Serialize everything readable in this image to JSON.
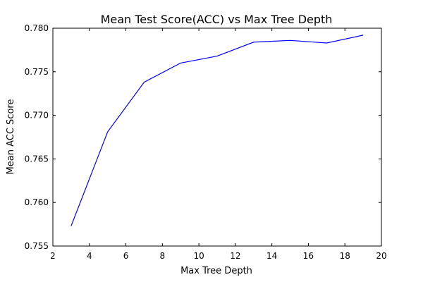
{
  "chart_data": {
    "type": "line",
    "title": "Mean Test Score(ACC) vs Max Tree Depth",
    "xlabel": "Max Tree Depth",
    "ylabel": "Mean ACC Score",
    "xlim": [
      2,
      20
    ],
    "ylim": [
      0.755,
      0.78
    ],
    "xticks": [
      "2",
      "4",
      "6",
      "8",
      "10",
      "12",
      "14",
      "16",
      "18",
      "20"
    ],
    "yticks": [
      "0.755",
      "0.760",
      "0.765",
      "0.770",
      "0.775",
      "0.780"
    ],
    "grid": false,
    "series": [
      {
        "color": "#0000ff",
        "x": [
          3,
          5,
          7,
          9,
          11,
          13,
          15,
          17,
          19
        ],
        "y": [
          0.7573,
          0.7681,
          0.7738,
          0.776,
          0.7768,
          0.7784,
          0.7786,
          0.7783,
          0.7792
        ]
      }
    ]
  }
}
